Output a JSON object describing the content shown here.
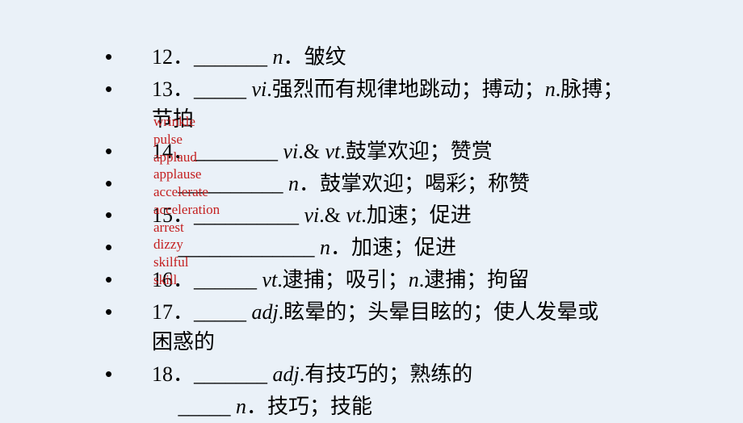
{
  "lines": [
    {
      "bullet": "•",
      "num": "12．",
      "blank": "_______ ",
      "pos": "n",
      "def": "．皱纹"
    },
    {
      "bullet": "•",
      "num": "13．",
      "blank": "_____ ",
      "pos": "vi",
      "def": ".强烈而有规律地跳动；搏动；",
      "pos2": "n",
      "def2": ".脉搏；",
      "cont": "节拍"
    },
    {
      "bullet": "•",
      "num": "14．",
      "blank": "________ ",
      "pos": "vi",
      "mid": ".& ",
      "pos2": "vt",
      "def": ".鼓掌欢迎；赞赏"
    },
    {
      "bullet": "•",
      "num": "",
      "blank": "　 __________ ",
      "pos": "n",
      "def": "．鼓掌欢迎；喝彩；称赞"
    },
    {
      "bullet": "•",
      "num": "15．",
      "blank": "__________ ",
      "pos": "vi",
      "mid": ".& ",
      "pos2": "vt",
      "def": ".加速；促进"
    },
    {
      "bullet": "•",
      "num": "",
      "blank": "　 _____________ ",
      "pos": "n",
      "def": "．加速；促进"
    },
    {
      "bullet": "•",
      "num": "16．",
      "blank": "______ ",
      "pos": "vt",
      "def": ".逮捕；吸引；",
      "pos2": "n",
      "def2": ".逮捕；拘留"
    },
    {
      "bullet": "•",
      "num": "17．",
      "blank": "_____ ",
      "pos": "adj",
      "def": ".眩晕的；头晕目眩的；使人发晕或",
      "cont": "困惑的"
    },
    {
      "bullet": "•",
      "num": "18．",
      "blank": "_______ ",
      "pos": "adj",
      "def": ".有技巧的；熟练的"
    },
    {
      "bullet": "",
      "num": "",
      "blank": "　 _____ ",
      "pos": "n",
      "def": "．技巧；技能"
    }
  ],
  "answers": [
    "wrinkle",
    "pulse",
    "applaud",
    "applause",
    "accelerate",
    "acceleration",
    "arrest",
    "dizzy",
    "skilful",
    "skill"
  ],
  "colors": {
    "bg": "#eaf1f8",
    "text": "#000000",
    "answer": "#c42020"
  }
}
